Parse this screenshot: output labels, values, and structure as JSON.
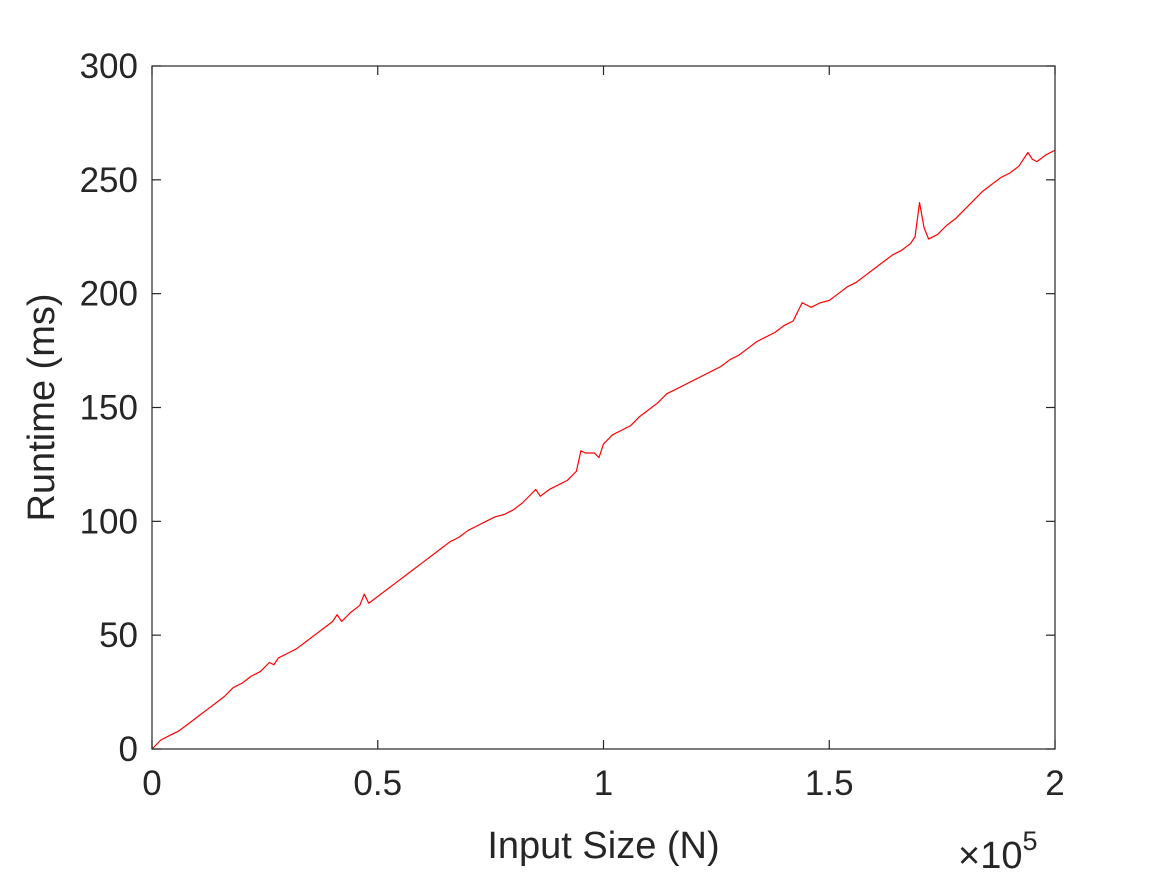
{
  "chart_data": {
    "type": "line",
    "title": "",
    "xlabel": "Input Size (N)",
    "ylabel": "Runtime (ms)",
    "x_multiplier_label": {
      "base": "×10",
      "exponent": "5"
    },
    "xlim": [
      0,
      2
    ],
    "ylim": [
      0,
      300
    ],
    "x_ticks": [
      0,
      0.5,
      1,
      1.5,
      2
    ],
    "x_tick_labels": [
      "0",
      "0.5",
      "1",
      "1.5",
      "2"
    ],
    "y_ticks": [
      0,
      50,
      100,
      150,
      200,
      250,
      300
    ],
    "y_tick_labels": [
      "0",
      "50",
      "100",
      "150",
      "200",
      "250",
      "300"
    ],
    "grid": false,
    "box": true,
    "series": [
      {
        "color": "#ff0000",
        "x": [
          0,
          0.02,
          0.04,
          0.06,
          0.08,
          0.1,
          0.12,
          0.14,
          0.16,
          0.18,
          0.2,
          0.22,
          0.24,
          0.26,
          0.27,
          0.28,
          0.3,
          0.32,
          0.34,
          0.36,
          0.38,
          0.4,
          0.41,
          0.42,
          0.44,
          0.46,
          0.47,
          0.48,
          0.5,
          0.52,
          0.54,
          0.56,
          0.58,
          0.6,
          0.62,
          0.64,
          0.66,
          0.68,
          0.7,
          0.72,
          0.74,
          0.76,
          0.78,
          0.8,
          0.82,
          0.84,
          0.85,
          0.86,
          0.88,
          0.9,
          0.92,
          0.94,
          0.95,
          0.96,
          0.98,
          0.99,
          1.0,
          1.02,
          1.04,
          1.06,
          1.08,
          1.1,
          1.12,
          1.14,
          1.16,
          1.18,
          1.2,
          1.22,
          1.24,
          1.26,
          1.28,
          1.3,
          1.32,
          1.34,
          1.36,
          1.38,
          1.4,
          1.42,
          1.44,
          1.46,
          1.48,
          1.5,
          1.52,
          1.54,
          1.56,
          1.58,
          1.6,
          1.62,
          1.64,
          1.66,
          1.68,
          1.69,
          1.7,
          1.71,
          1.72,
          1.74,
          1.76,
          1.78,
          1.8,
          1.82,
          1.84,
          1.86,
          1.88,
          1.9,
          1.92,
          1.93,
          1.94,
          1.95,
          1.96,
          1.98,
          2.0
        ],
        "y": [
          0,
          4,
          6,
          8,
          11,
          14,
          17,
          20,
          23,
          27,
          29,
          32,
          34,
          38,
          37,
          40,
          42,
          44,
          47,
          50,
          53,
          56,
          59,
          56,
          60,
          63,
          68,
          64,
          67,
          70,
          73,
          76,
          79,
          82,
          85,
          88,
          91,
          93,
          96,
          98,
          100,
          102,
          103,
          105,
          108,
          112,
          114,
          111,
          114,
          116,
          118,
          122,
          131,
          130,
          130,
          128,
          134,
          138,
          140,
          142,
          146,
          149,
          152,
          156,
          158,
          160,
          162,
          164,
          166,
          168,
          171,
          173,
          176,
          179,
          181,
          183,
          186,
          188,
          196,
          194,
          196,
          197,
          200,
          203,
          205,
          208,
          211,
          214,
          217,
          219,
          222,
          225,
          240,
          229,
          224,
          226,
          230,
          233,
          237,
          241,
          245,
          248,
          251,
          253,
          256,
          259,
          262,
          259,
          258,
          261,
          263
        ]
      }
    ]
  }
}
